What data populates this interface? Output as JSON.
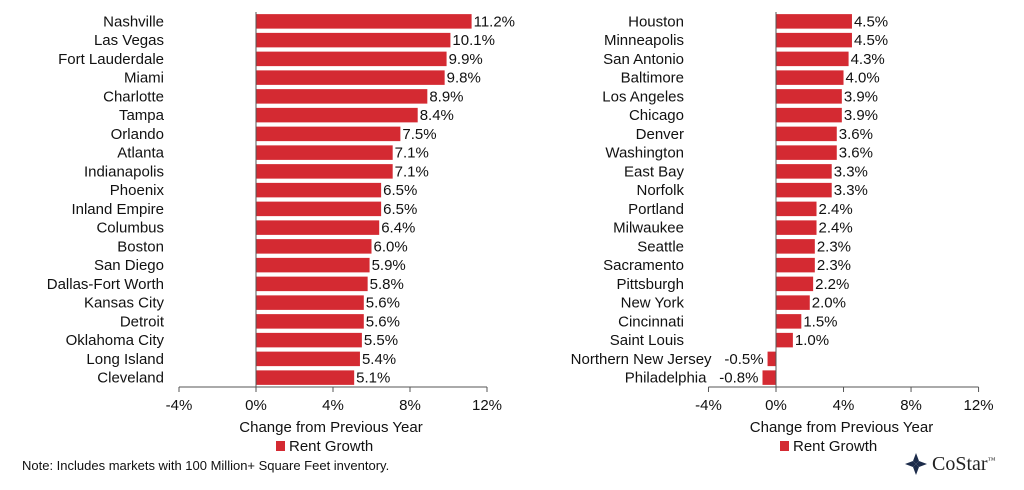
{
  "chart_data": [
    {
      "type": "bar",
      "orientation": "horizontal",
      "categories": [
        "Nashville",
        "Las Vegas",
        "Fort Lauderdale",
        "Miami",
        "Charlotte",
        "Tampa",
        "Orlando",
        "Atlanta",
        "Indianapolis",
        "Phoenix",
        "Inland Empire",
        "Columbus",
        "Boston",
        "San Diego",
        "Dallas-Fort Worth",
        "Kansas City",
        "Detroit",
        "Oklahoma City",
        "Long Island",
        "Cleveland"
      ],
      "values": [
        11.2,
        10.1,
        9.9,
        9.8,
        8.9,
        8.4,
        7.5,
        7.1,
        7.1,
        6.5,
        6.5,
        6.4,
        6.0,
        5.9,
        5.8,
        5.6,
        5.6,
        5.5,
        5.4,
        5.1
      ],
      "value_labels": [
        "11.2%",
        "10.1%",
        "9.9%",
        "9.8%",
        "8.9%",
        "8.4%",
        "7.5%",
        "7.1%",
        "7.1%",
        "6.5%",
        "6.5%",
        "6.4%",
        "6.0%",
        "5.9%",
        "5.8%",
        "5.6%",
        "5.6%",
        "5.5%",
        "5.4%",
        "5.1%"
      ],
      "xlim": [
        -4,
        12
      ],
      "xticks": [
        "-4%",
        "0%",
        "4%",
        "8%",
        "12%"
      ],
      "xlabel": "Change from Previous Year",
      "legend": "Rent Growth",
      "grid": false
    },
    {
      "type": "bar",
      "orientation": "horizontal",
      "categories": [
        "Houston",
        "Minneapolis",
        "San Antonio",
        "Baltimore",
        "Los Angeles",
        "Chicago",
        "Denver",
        "Washington",
        "East Bay",
        "Norfolk",
        "Portland",
        "Milwaukee",
        "Seattle",
        "Sacramento",
        "Pittsburgh",
        "New York",
        "Cincinnati",
        "Saint Louis",
        "Northern New Jersey",
        "Philadelphia"
      ],
      "values": [
        4.5,
        4.5,
        4.3,
        4.0,
        3.9,
        3.9,
        3.6,
        3.6,
        3.3,
        3.3,
        2.4,
        2.4,
        2.3,
        2.3,
        2.2,
        2.0,
        1.5,
        1.0,
        -0.5,
        -0.8
      ],
      "value_labels": [
        "4.5%",
        "4.5%",
        "4.3%",
        "4.0%",
        "3.9%",
        "3.9%",
        "3.6%",
        "3.6%",
        "3.3%",
        "3.3%",
        "2.4%",
        "2.4%",
        "2.3%",
        "2.3%",
        "2.2%",
        "2.0%",
        "1.5%",
        "1.0%",
        "-0.5%",
        "-0.8%"
      ],
      "xlim": [
        -4,
        12
      ],
      "xticks": [
        "-4%",
        "0%",
        "4%",
        "8%",
        "12%"
      ],
      "xlabel": "Change from Previous Year",
      "legend": "Rent Growth",
      "grid": false
    }
  ],
  "colors": {
    "bar": "#d42a32",
    "axis": "#555555"
  },
  "footnote": "Note: Includes markets with 100 Million+ Square Feet inventory.",
  "logo": {
    "word": "CoStar",
    "tm": "™",
    "icon": "costar-star-icon"
  }
}
